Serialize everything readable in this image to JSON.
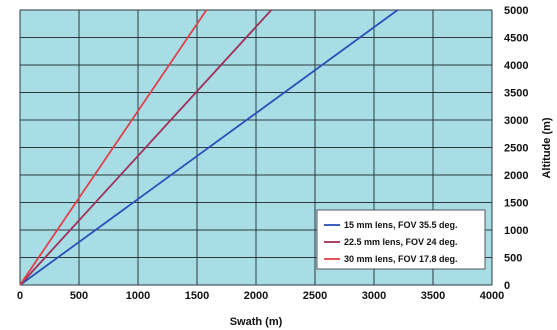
{
  "chart_data": {
    "type": "line",
    "xlabel": "Swath (m)",
    "ylabel": "Altitude (m)",
    "xlim": [
      0,
      4000
    ],
    "ylim": [
      0,
      5000
    ],
    "x_ticks": [
      "0",
      "500",
      "1000",
      "1500",
      "2000",
      "2500",
      "3000",
      "3500",
      "4000"
    ],
    "y_ticks": [
      "0",
      "500",
      "1000",
      "1500",
      "2000",
      "2500",
      "3000",
      "3500",
      "4000",
      "4500",
      "5000"
    ],
    "grid": true,
    "legend_position": "bottom-right",
    "series": [
      {
        "name": "15 mm lens, FOV 35.5 deg.",
        "color": "#2b4fb8",
        "x": [
          0,
          3200
        ],
        "y": [
          0,
          5000
        ]
      },
      {
        "name": "22.5 mm lens, FOV 24 deg.",
        "color": "#a0305a",
        "x": [
          0,
          2130
        ],
        "y": [
          0,
          5000
        ]
      },
      {
        "name": "30 mm lens, FOV 17.8 deg.",
        "color": "#e0404a",
        "x": [
          0,
          1580
        ],
        "y": [
          0,
          5000
        ]
      }
    ],
    "colors": {
      "plot_background": "#a8dde6",
      "grid": "#2a3a3e"
    }
  }
}
